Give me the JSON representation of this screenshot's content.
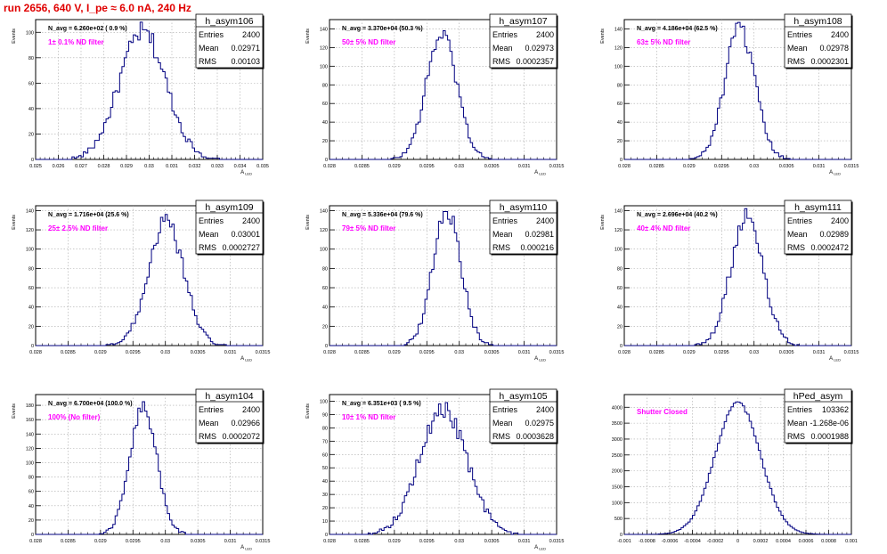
{
  "run_title": "run 2656,   640 V, I_pe ≈ 6.0 nA, 240 Hz",
  "colors": {
    "title": "#e00000",
    "histogram": "#000080",
    "annotation": "#ff00ff",
    "grid": "#aaaaaa"
  },
  "stat_labels": {
    "entries": "Entries",
    "mean": "Mean",
    "rms": "RMS"
  },
  "chart_data": [
    {
      "type": "histogram",
      "name": "h_asym106",
      "navg": "N_avg = 6.260e+02 ( 0.9 %)",
      "note": "1± 0.1% ND filter",
      "stats": {
        "entries": "2400",
        "mean": "0.02971",
        "rms": "0.00103"
      },
      "ylabel": "Events",
      "xlabel": "A_{LED}",
      "xlim": [
        0.025,
        0.035
      ],
      "ylim": [
        0,
        110
      ],
      "mean": 0.02971,
      "sigma": 0.00103,
      "peak": 100,
      "xticks": [
        "0.025",
        "0.026",
        "0.027",
        "0.028",
        "0.029",
        "0.03",
        "0.031",
        "0.032",
        "0.033",
        "0.034",
        "0.035"
      ],
      "yticks": [
        "0",
        "20",
        "40",
        "60",
        "80",
        "100"
      ],
      "grid": true
    },
    {
      "type": "histogram",
      "name": "h_asym107",
      "navg": "N_avg = 3.370e+04 (50.3 %)",
      "note": "50± 5% ND filter",
      "stats": {
        "entries": "2400",
        "mean": "0.02973",
        "rms": "0.0002357"
      },
      "ylabel": "Events",
      "xlabel": "A_{LED}",
      "xlim": [
        0.028,
        0.0315
      ],
      "ylim": [
        0,
        150
      ],
      "mean": 0.02973,
      "sigma": 0.0002357,
      "peak": 135,
      "xticks": [
        "0.028",
        "0.0285",
        "0.029",
        "0.0295",
        "0.03",
        "0.0305",
        "0.031",
        "0.0315"
      ],
      "yticks": [
        "0",
        "20",
        "40",
        "60",
        "80",
        "100",
        "120",
        "140"
      ],
      "grid": true
    },
    {
      "type": "histogram",
      "name": "h_asym108",
      "navg": "N_avg = 4.186e+04 (62.5 %)",
      "note": "63± 5% ND filter",
      "stats": {
        "entries": "2400",
        "mean": "0.02978",
        "rms": "0.0002301"
      },
      "ylabel": "Events",
      "xlabel": "A_{LED}",
      "xlim": [
        0.028,
        0.0315
      ],
      "ylim": [
        0,
        150
      ],
      "mean": 0.02978,
      "sigma": 0.0002301,
      "peak": 140,
      "xticks": [
        "0.028",
        "0.0285",
        "0.029",
        "0.0295",
        "0.03",
        "0.0305",
        "0.031",
        "0.0315"
      ],
      "yticks": [
        "0",
        "20",
        "40",
        "60",
        "80",
        "100",
        "120",
        "140"
      ],
      "grid": true
    },
    {
      "type": "histogram",
      "name": "h_asym109",
      "navg": "N_avg = 1.716e+04 (25.6 %)",
      "note": "25± 2.5% ND filter",
      "stats": {
        "entries": "2400",
        "mean": "0.03001",
        "rms": "0.0002727"
      },
      "ylabel": "Events",
      "xlabel": "A_{LED}",
      "xlim": [
        0.028,
        0.0315
      ],
      "ylim": [
        0,
        145
      ],
      "mean": 0.03001,
      "sigma": 0.0002727,
      "peak": 128,
      "xticks": [
        "0.028",
        "0.0285",
        "0.029",
        "0.0295",
        "0.03",
        "0.0305",
        "0.031",
        "0.0315"
      ],
      "yticks": [
        "0",
        "20",
        "40",
        "60",
        "80",
        "100",
        "120",
        "140"
      ],
      "grid": true
    },
    {
      "type": "histogram",
      "name": "h_asym110",
      "navg": "N_avg = 5.336e+04 (79.6 %)",
      "note": "79± 5% ND filter",
      "stats": {
        "entries": "2400",
        "mean": "0.02981",
        "rms": "0.000216"
      },
      "ylabel": "Events",
      "xlabel": "A_{LED}",
      "xlim": [
        0.028,
        0.0315
      ],
      "ylim": [
        0,
        145
      ],
      "mean": 0.02981,
      "sigma": 0.000216,
      "peak": 140,
      "xticks": [
        "0.028",
        "0.0285",
        "0.029",
        "0.0295",
        "0.03",
        "0.0305",
        "0.031",
        "0.0315"
      ],
      "yticks": [
        "0",
        "20",
        "40",
        "60",
        "80",
        "100",
        "120",
        "140"
      ],
      "grid": true
    },
    {
      "type": "histogram",
      "name": "h_asym111",
      "navg": "N_avg = 2.696e+04 (40.2 %)",
      "note": "40± 4% ND filter",
      "stats": {
        "entries": "2400",
        "mean": "0.02989",
        "rms": "0.0002472"
      },
      "ylabel": "Events",
      "xlabel": "A_{LED}",
      "xlim": [
        0.028,
        0.0315
      ],
      "ylim": [
        0,
        145
      ],
      "mean": 0.02989,
      "sigma": 0.0002472,
      "peak": 135,
      "xticks": [
        "0.028",
        "0.0285",
        "0.029",
        "0.0295",
        "0.03",
        "0.0305",
        "0.031",
        "0.0315"
      ],
      "yticks": [
        "0",
        "20",
        "40",
        "60",
        "80",
        "100",
        "120",
        "140"
      ],
      "grid": true
    },
    {
      "type": "histogram",
      "name": "h_asym104",
      "navg": "N_avg = 6.700e+04 (100.0 %)",
      "note": "100% (No filter)",
      "stats": {
        "entries": "2400",
        "mean": "0.02966",
        "rms": "0.0002072"
      },
      "ylabel": "Events",
      "xlabel": "A_{LED}",
      "xlim": [
        0.028,
        0.0315
      ],
      "ylim": [
        0,
        195
      ],
      "mean": 0.02966,
      "sigma": 0.0002072,
      "peak": 178,
      "xticks": [
        "0.028",
        "0.0285",
        "0.029",
        "0.0295",
        "0.03",
        "0.0305",
        "0.031",
        "0.0315"
      ],
      "yticks": [
        "0",
        "20",
        "40",
        "60",
        "80",
        "100",
        "120",
        "140",
        "160",
        "180"
      ],
      "grid": true
    },
    {
      "type": "histogram",
      "name": "h_asym105",
      "navg": "N_avg = 6.351e+03 ( 9.5 %)",
      "note": "10± 1% ND filter",
      "stats": {
        "entries": "2400",
        "mean": "0.02975",
        "rms": "0.0003628"
      },
      "ylabel": "Events",
      "xlabel": "A_{LED}",
      "xlim": [
        0.028,
        0.0315
      ],
      "ylim": [
        0,
        105
      ],
      "mean": 0.02975,
      "sigma": 0.0003628,
      "peak": 94,
      "xticks": [
        "0.028",
        "0.0285",
        "0.029",
        "0.0295",
        "0.03",
        "0.0305",
        "0.031",
        "0.0315"
      ],
      "yticks": [
        "0",
        "10",
        "20",
        "30",
        "40",
        "50",
        "60",
        "70",
        "80",
        "90",
        "100"
      ],
      "grid": true
    },
    {
      "type": "histogram",
      "name": "hPed_asym",
      "navg": "",
      "note": "Shutter Closed",
      "stats": {
        "entries": "103362",
        "mean": "-1.268e-06",
        "rms": "0.0001988"
      },
      "ylabel": "",
      "xlabel": "",
      "xlim": [
        -0.001,
        0.001
      ],
      "ylim": [
        0,
        4400
      ],
      "mean": -1.268e-06,
      "sigma": 0.0001988,
      "peak": 4150,
      "xticks": [
        "-0.001",
        "-0.0008",
        "-0.0006",
        "-0.0004",
        "-0.0002",
        "0",
        "0.0002",
        "0.0004",
        "0.0006",
        "0.0008",
        "0.001"
      ],
      "yticks": [
        "0",
        "500",
        "1000",
        "1500",
        "2000",
        "2500",
        "3000",
        "3500",
        "4000"
      ],
      "grid": true
    }
  ]
}
